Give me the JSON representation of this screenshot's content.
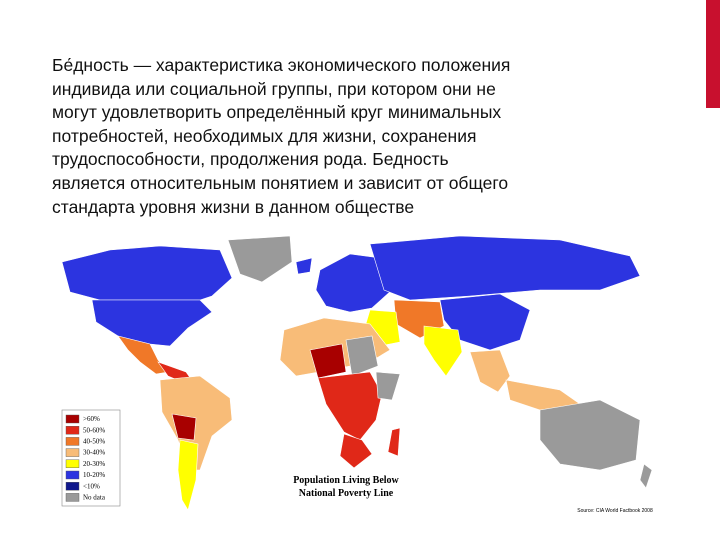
{
  "text": {
    "lines": [
      "Бе́дность — характеристика экономического положения",
      "индивида или социальной группы, при котором они не",
      "могут удовлетворить определённый круг минимальных",
      "потребностей, необходимых для жизни, сохранения",
      "трудоспособности, продолжения рода. Бедность",
      "является относительным понятием и зависит от общего",
      "стандарта уровня жизни в данном обществе"
    ]
  },
  "map": {
    "title_lines": [
      "Population Living Below",
      "National Poverty Line"
    ],
    "source": "Source: CIA World Factbook 2008",
    "legend": [
      {
        "label": ">60%",
        "color": "#a80000"
      },
      {
        "label": "50-60%",
        "color": "#e02818"
      },
      {
        "label": "40-50%",
        "color": "#f07828"
      },
      {
        "label": "30-40%",
        "color": "#f8bc78"
      },
      {
        "label": "20-30%",
        "color": "#ffff00"
      },
      {
        "label": "10-20%",
        "color": "#2c34e0"
      },
      {
        "label": "<10%",
        "color": "#10188c"
      },
      {
        "label": "No data",
        "color": "#9a9a9a"
      }
    ]
  }
}
